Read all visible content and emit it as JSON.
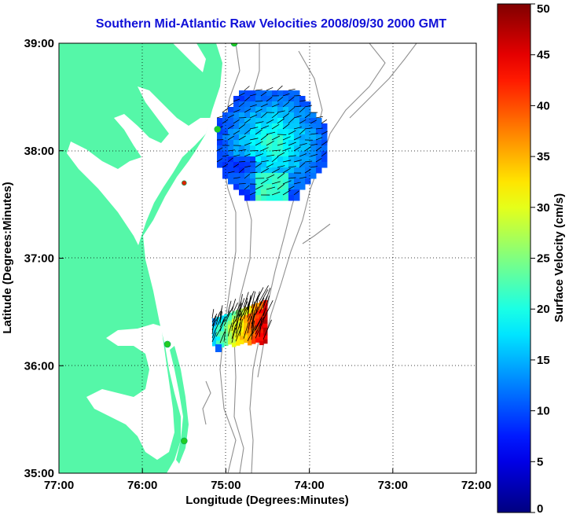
{
  "chart_data": {
    "type": "heatmap",
    "title": "Southern Mid-Atlantic Raw Velocities 2008/09/30 2000 GMT",
    "xlabel": "Longitude (Degrees:Minutes)",
    "ylabel": "Latitude (Degrees:Minutes)",
    "xlim": [
      -77,
      -72
    ],
    "ylim": [
      35,
      39
    ],
    "x_ticks": [
      "77:00",
      "76:00",
      "75:00",
      "74:00",
      "73:00",
      "72:00"
    ],
    "y_ticks": [
      "35:00",
      "36:00",
      "37:00",
      "38:00",
      "39:00"
    ],
    "grid": true,
    "colorbar": {
      "label": "Surface Velocity (cm/s)",
      "min": 0,
      "max": 50,
      "ticks": [
        "0",
        "5",
        "10",
        "15",
        "20",
        "25",
        "30",
        "35",
        "40",
        "45",
        "50"
      ]
    },
    "regions": [
      {
        "name_hint": "northern coverage",
        "lon_range": [
          -75.1,
          -74.1
        ],
        "lat_range": [
          37.5,
          38.5
        ],
        "velocity_range_cm_s": [
          5,
          25
        ]
      },
      {
        "name_hint": "southern coverage",
        "lon_range": [
          -75.1,
          -74.5
        ],
        "lat_range": [
          36.2,
          36.5
        ],
        "velocity_range_cm_s": [
          15,
          50
        ]
      }
    ],
    "stations": [
      {
        "lon": -74.9,
        "lat": 39.0,
        "color": "#22cc22"
      },
      {
        "lon": -75.1,
        "lat": 38.2,
        "color": "#22cc22"
      },
      {
        "lon": -75.5,
        "lat": 37.7,
        "color": "#dd2200"
      },
      {
        "lon": -75.7,
        "lat": 36.2,
        "color": "#22cc22"
      },
      {
        "lon": -75.5,
        "lat": 35.3,
        "color": "#22cc22"
      }
    ]
  },
  "colors": {
    "land": "#55f7a8",
    "title": "#1010d8",
    "station_green": "#22cc22",
    "station_red": "#dd2200",
    "contour": "#909090"
  }
}
